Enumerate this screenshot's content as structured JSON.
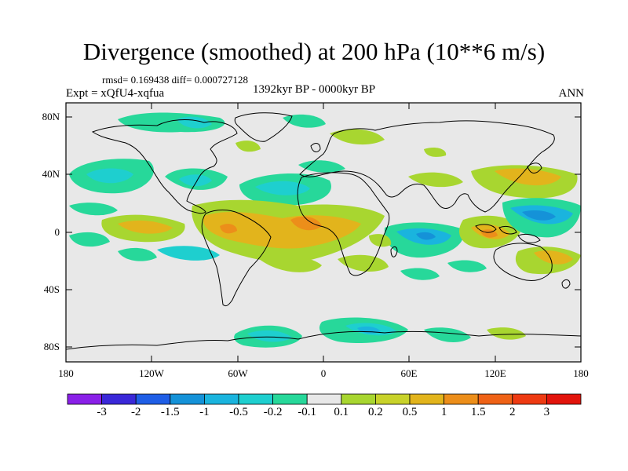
{
  "title": "Divergence (smoothed) at 200 hPa (10**6 m/s)",
  "stats": "rmsd= 0.169438 diff= 0.000727128",
  "experiment": "Expt = xQfU4-xqfua",
  "period": "1392kyr BP - 0000kyr BP",
  "season": "ANN",
  "map": {
    "lat_labels": [
      "80N",
      "40N",
      "0",
      "40S",
      "80S"
    ],
    "lon_labels": [
      "180",
      "120W",
      "60W",
      "0",
      "60E",
      "120E",
      "180"
    ],
    "lat_range": [
      -90,
      90
    ],
    "lon_range": [
      -180,
      180
    ]
  },
  "colorbar": {
    "labels": [
      "-3",
      "-2",
      "-1.5",
      "-1",
      "-0.5",
      "-0.2",
      "-0.1",
      "0.1",
      "0.2",
      "0.5",
      "1",
      "1.5",
      "2",
      "3"
    ],
    "colors": [
      "#8a20e8",
      "#3a28d8",
      "#1f5ee6",
      "#1592d8",
      "#1ab4de",
      "#1ecfcf",
      "#27d89a",
      "#e8e8e8",
      "#a8d630",
      "#c8d22a",
      "#e2b41c",
      "#ec8e1a",
      "#ef6216",
      "#ee3a12",
      "#e2140c"
    ]
  },
  "colors": {
    "land_outline": "#000000",
    "ocean_background": "#e8e8e8"
  }
}
